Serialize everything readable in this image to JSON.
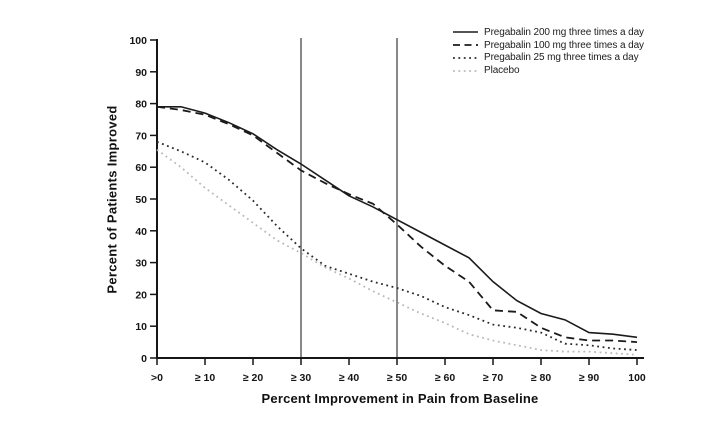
{
  "chart_data": {
    "type": "line",
    "title": "",
    "xlabel": "Percent Improvement in Pain from Baseline",
    "ylabel": "Percent of Patients Improved",
    "xlim": [
      0,
      100
    ],
    "ylim": [
      0,
      100
    ],
    "grid": false,
    "legend_position": "top-right",
    "x_ticks": [
      0,
      10,
      20,
      30,
      40,
      50,
      60,
      70,
      80,
      90,
      100
    ],
    "x_tick_labels": [
      ">0",
      "≥ 10",
      "≥ 20",
      "≥ 30",
      "≥ 40",
      "≥ 50",
      "≥ 60",
      "≥ 70",
      "≥ 80",
      "≥ 90",
      "100"
    ],
    "y_ticks": [
      0,
      10,
      20,
      30,
      40,
      50,
      60,
      70,
      80,
      90,
      100
    ],
    "reference_vlines": [
      30,
      50
    ],
    "x": [
      0,
      5,
      10,
      15,
      20,
      25,
      30,
      35,
      40,
      45,
      50,
      55,
      60,
      65,
      70,
      75,
      80,
      85,
      90,
      95,
      100
    ],
    "series": [
      {
        "name": "Pregabalin 200 mg three times a day",
        "style": "solid",
        "color": "#1b1b1b",
        "values": [
          79,
          79,
          77,
          74,
          70.5,
          65.5,
          61,
          56,
          51,
          47.5,
          43.5,
          39.5,
          35.5,
          31.5,
          24,
          18,
          14,
          12,
          8,
          7.5,
          6.5
        ]
      },
      {
        "name": "Pregabalin 100 mg three times a day",
        "style": "dashed",
        "color": "#1b1b1b",
        "values": [
          79,
          78,
          76.5,
          73.5,
          70,
          64.5,
          59,
          55,
          51.5,
          48.5,
          42,
          35,
          29,
          24,
          15,
          14.5,
          9.5,
          6.5,
          5.5,
          5.5,
          5
        ]
      },
      {
        "name": "Pregabalin 25 mg three times a day",
        "style": "dotted",
        "color": "#2a2a2a",
        "values": [
          68,
          65,
          61.5,
          56,
          49.5,
          41.5,
          34.5,
          29,
          26.5,
          24,
          22,
          19.5,
          16,
          13.5,
          10.5,
          9.5,
          8,
          4.5,
          4,
          3,
          2.5
        ]
      },
      {
        "name": "Placebo",
        "style": "dotted",
        "color": "#b9b9b9",
        "values": [
          65.5,
          60,
          53.5,
          48,
          42.5,
          37,
          33,
          28.5,
          25,
          21,
          17.5,
          14,
          11,
          7.5,
          5.5,
          4,
          2.5,
          2,
          2,
          1.5,
          1
        ]
      }
    ],
    "colors": {
      "axis": "#161616",
      "reference_line": "#3a3a3a",
      "background": "#ffffff"
    }
  }
}
